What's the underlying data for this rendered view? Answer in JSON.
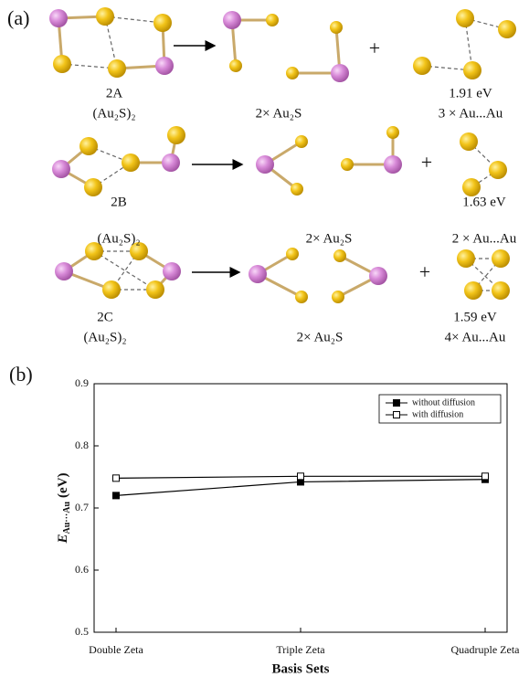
{
  "panel_a": {
    "label": "(a)",
    "rows": [
      {
        "name": "2A",
        "formula": "(Au₂S)₂",
        "products": "2× Au₂S",
        "energy": "1.91 eV",
        "contacts": "3 × Au...Au"
      },
      {
        "name": "2B",
        "formula": "(Au₂S)₂",
        "products": "2× Au₂S",
        "energy": "1.63 eV",
        "contacts": "2 × Au...Au"
      },
      {
        "name": "2C",
        "formula": "(Au₂S)₂",
        "products": "2× Au₂S",
        "energy": "1.59 eV",
        "contacts": "4× Au...Au"
      }
    ]
  },
  "chart_data": {
    "type": "line",
    "label": "(b)",
    "categories": [
      "Double Zeta",
      "Triple  Zeta",
      "Quadruple Zeta"
    ],
    "x_label": "Basis Sets",
    "y_label": {
      "symbol": "E",
      "subscript": "Au···Au",
      "unit": "(eV)"
    },
    "ylim": [
      0.5,
      0.9
    ],
    "yticks": [
      0.5,
      0.6,
      0.7,
      0.8,
      0.9
    ],
    "legend": "top-right",
    "series": [
      {
        "name": "without diffusion",
        "color": "#000000",
        "marker": "filled-square",
        "values": [
          0.72,
          0.742,
          0.746
        ]
      },
      {
        "name": "with diffusion",
        "color": "#000000",
        "marker": "open-square",
        "values": [
          0.748,
          0.751,
          0.751
        ]
      }
    ]
  }
}
